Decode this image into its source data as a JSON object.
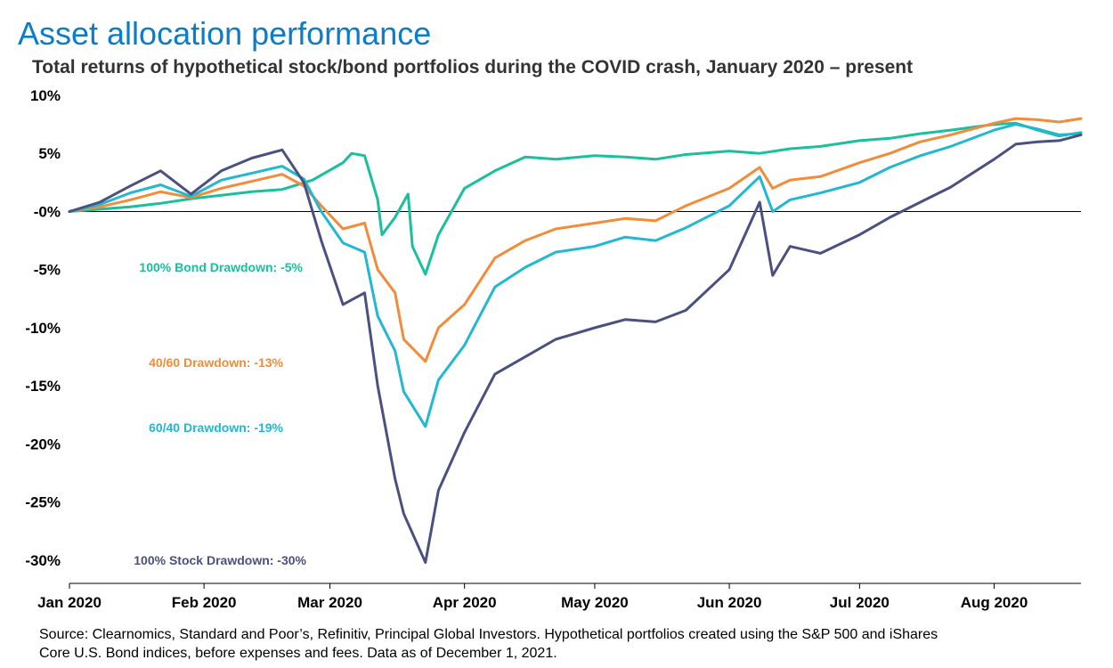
{
  "header": {
    "title": "Asset allocation performance",
    "subtitle": "Total returns of hypothetical stock/bond portfolios during the COVID crash, January 2020 – present"
  },
  "footer": {
    "source_line1": "Source: Clearnomics, Standard and Poor’s, Refinitiv, Principal Global Investors. Hypothetical portfolios created using the S&P 500 and iShares",
    "source_line2": "Core U.S. Bond indices, before expenses and fees. Data as of December 1, 2021."
  },
  "chart_data": {
    "type": "line",
    "title": "Asset allocation performance",
    "xlabel": "",
    "ylabel": "",
    "xlim": [
      "2020-01-01",
      "2020-08-21"
    ],
    "ylim": [
      -32,
      10
    ],
    "yticks": [
      10,
      5,
      0,
      -5,
      -10,
      -15,
      -20,
      -25,
      -30
    ],
    "ytick_labels": [
      "10%",
      "5%",
      "-0%",
      "-5%",
      "-10%",
      "-15%",
      "-20%",
      "-25%",
      "-30%"
    ],
    "xticks": [
      "2020-01-01",
      "2020-02-01",
      "2020-03-01",
      "2020-04-01",
      "2020-05-01",
      "2020-06-01",
      "2020-07-01",
      "2020-08-01"
    ],
    "xtick_labels": [
      "Jan 2020",
      "Feb 2020",
      "Mar 2020",
      "Apr 2020",
      "May 2020",
      "Jun 2020",
      "Jul 2020",
      "Aug 2020"
    ],
    "grid": false,
    "zero_line": true,
    "legend": "none",
    "annotations": [
      {
        "text": "100% Bond Drawdown: -5%",
        "color": "#1abf9b",
        "series": "100% Bond"
      },
      {
        "text": "40/60 Drawdown: -13%",
        "color": "#f28c38",
        "series": "40/60"
      },
      {
        "text": "60/40 Drawdown: -19%",
        "color": "#22b8d1",
        "series": "60/40"
      },
      {
        "text": "100% Stock Drawdown: -30%",
        "color": "#4a5080",
        "series": "100% Stock"
      }
    ],
    "series": [
      {
        "label": "100% Bond",
        "color": "#1abf9b",
        "points": [
          [
            "2020-01-01",
            0.0
          ],
          [
            "2020-01-08",
            0.2
          ],
          [
            "2020-01-15",
            0.4
          ],
          [
            "2020-01-22",
            0.7
          ],
          [
            "2020-01-29",
            1.1
          ],
          [
            "2020-02-05",
            1.4
          ],
          [
            "2020-02-12",
            1.7
          ],
          [
            "2020-02-19",
            1.9
          ],
          [
            "2020-02-26",
            2.7
          ],
          [
            "2020-03-04",
            4.2
          ],
          [
            "2020-03-06",
            5.0
          ],
          [
            "2020-03-09",
            4.8
          ],
          [
            "2020-03-12",
            1.0
          ],
          [
            "2020-03-13",
            -2.0
          ],
          [
            "2020-03-16",
            -0.5
          ],
          [
            "2020-03-19",
            1.5
          ],
          [
            "2020-03-20",
            -3.0
          ],
          [
            "2020-03-23",
            -5.4
          ],
          [
            "2020-03-26",
            -2.0
          ],
          [
            "2020-04-01",
            2.0
          ],
          [
            "2020-04-08",
            3.5
          ],
          [
            "2020-04-15",
            4.7
          ],
          [
            "2020-04-22",
            4.5
          ],
          [
            "2020-05-01",
            4.8
          ],
          [
            "2020-05-08",
            4.7
          ],
          [
            "2020-05-15",
            4.5
          ],
          [
            "2020-05-22",
            4.9
          ],
          [
            "2020-06-01",
            5.2
          ],
          [
            "2020-06-08",
            5.0
          ],
          [
            "2020-06-15",
            5.4
          ],
          [
            "2020-06-22",
            5.6
          ],
          [
            "2020-07-01",
            6.1
          ],
          [
            "2020-07-08",
            6.3
          ],
          [
            "2020-07-15",
            6.7
          ],
          [
            "2020-07-22",
            7.0
          ],
          [
            "2020-08-01",
            7.5
          ],
          [
            "2020-08-06",
            7.6
          ],
          [
            "2020-08-11",
            7.0
          ],
          [
            "2020-08-16",
            6.5
          ],
          [
            "2020-08-21",
            6.8
          ]
        ]
      },
      {
        "label": "40/60",
        "color": "#f28c38",
        "points": [
          [
            "2020-01-01",
            0.0
          ],
          [
            "2020-01-08",
            0.4
          ],
          [
            "2020-01-15",
            1.0
          ],
          [
            "2020-01-22",
            1.7
          ],
          [
            "2020-01-29",
            1.2
          ],
          [
            "2020-02-05",
            2.0
          ],
          [
            "2020-02-12",
            2.6
          ],
          [
            "2020-02-19",
            3.2
          ],
          [
            "2020-02-24",
            2.2
          ],
          [
            "2020-02-28",
            0.5
          ],
          [
            "2020-03-04",
            -1.5
          ],
          [
            "2020-03-09",
            -1.0
          ],
          [
            "2020-03-12",
            -5.0
          ],
          [
            "2020-03-16",
            -7.0
          ],
          [
            "2020-03-18",
            -11.0
          ],
          [
            "2020-03-23",
            -12.9
          ],
          [
            "2020-03-26",
            -10.0
          ],
          [
            "2020-04-01",
            -8.0
          ],
          [
            "2020-04-08",
            -4.0
          ],
          [
            "2020-04-15",
            -2.5
          ],
          [
            "2020-04-22",
            -1.5
          ],
          [
            "2020-05-01",
            -1.0
          ],
          [
            "2020-05-08",
            -0.6
          ],
          [
            "2020-05-15",
            -0.8
          ],
          [
            "2020-05-22",
            0.5
          ],
          [
            "2020-06-01",
            2.0
          ],
          [
            "2020-06-08",
            3.8
          ],
          [
            "2020-06-11",
            2.0
          ],
          [
            "2020-06-15",
            2.7
          ],
          [
            "2020-06-22",
            3.0
          ],
          [
            "2020-07-01",
            4.2
          ],
          [
            "2020-07-08",
            5.0
          ],
          [
            "2020-07-15",
            6.0
          ],
          [
            "2020-07-22",
            6.6
          ],
          [
            "2020-08-01",
            7.6
          ],
          [
            "2020-08-06",
            8.0
          ],
          [
            "2020-08-11",
            7.9
          ],
          [
            "2020-08-16",
            7.7
          ],
          [
            "2020-08-21",
            8.0
          ]
        ]
      },
      {
        "label": "60/40",
        "color": "#22b8d1",
        "points": [
          [
            "2020-01-01",
            0.0
          ],
          [
            "2020-01-08",
            0.6
          ],
          [
            "2020-01-15",
            1.6
          ],
          [
            "2020-01-22",
            2.3
          ],
          [
            "2020-01-29",
            1.3
          ],
          [
            "2020-02-05",
            2.7
          ],
          [
            "2020-02-12",
            3.3
          ],
          [
            "2020-02-19",
            3.9
          ],
          [
            "2020-02-24",
            2.8
          ],
          [
            "2020-02-28",
            0.0
          ],
          [
            "2020-03-04",
            -2.7
          ],
          [
            "2020-03-09",
            -3.5
          ],
          [
            "2020-03-12",
            -9.0
          ],
          [
            "2020-03-16",
            -12.0
          ],
          [
            "2020-03-18",
            -15.5
          ],
          [
            "2020-03-23",
            -18.5
          ],
          [
            "2020-03-26",
            -14.5
          ],
          [
            "2020-04-01",
            -11.5
          ],
          [
            "2020-04-08",
            -6.5
          ],
          [
            "2020-04-15",
            -4.8
          ],
          [
            "2020-04-22",
            -3.5
          ],
          [
            "2020-05-01",
            -3.0
          ],
          [
            "2020-05-08",
            -2.2
          ],
          [
            "2020-05-15",
            -2.5
          ],
          [
            "2020-05-22",
            -1.4
          ],
          [
            "2020-06-01",
            0.5
          ],
          [
            "2020-06-08",
            3.0
          ],
          [
            "2020-06-11",
            0.0
          ],
          [
            "2020-06-15",
            1.0
          ],
          [
            "2020-06-22",
            1.6
          ],
          [
            "2020-07-01",
            2.5
          ],
          [
            "2020-07-08",
            3.8
          ],
          [
            "2020-07-15",
            4.8
          ],
          [
            "2020-07-22",
            5.6
          ],
          [
            "2020-08-01",
            7.0
          ],
          [
            "2020-08-06",
            7.5
          ],
          [
            "2020-08-11",
            7.1
          ],
          [
            "2020-08-16",
            6.6
          ],
          [
            "2020-08-21",
            6.7
          ]
        ]
      },
      {
        "label": "100% Stock",
        "color": "#4a5080",
        "points": [
          [
            "2020-01-01",
            0.0
          ],
          [
            "2020-01-08",
            0.8
          ],
          [
            "2020-01-15",
            2.2
          ],
          [
            "2020-01-22",
            3.5
          ],
          [
            "2020-01-29",
            1.5
          ],
          [
            "2020-02-05",
            3.5
          ],
          [
            "2020-02-12",
            4.6
          ],
          [
            "2020-02-19",
            5.3
          ],
          [
            "2020-02-24",
            2.5
          ],
          [
            "2020-02-28",
            -2.5
          ],
          [
            "2020-03-04",
            -8.0
          ],
          [
            "2020-03-09",
            -7.0
          ],
          [
            "2020-03-12",
            -15.0
          ],
          [
            "2020-03-16",
            -23.0
          ],
          [
            "2020-03-18",
            -26.0
          ],
          [
            "2020-03-23",
            -30.2
          ],
          [
            "2020-03-26",
            -24.0
          ],
          [
            "2020-04-01",
            -19.0
          ],
          [
            "2020-04-08",
            -14.0
          ],
          [
            "2020-04-15",
            -12.5
          ],
          [
            "2020-04-22",
            -11.0
          ],
          [
            "2020-05-01",
            -10.0
          ],
          [
            "2020-05-08",
            -9.3
          ],
          [
            "2020-05-15",
            -9.5
          ],
          [
            "2020-05-22",
            -8.5
          ],
          [
            "2020-06-01",
            -5.0
          ],
          [
            "2020-06-08",
            0.8
          ],
          [
            "2020-06-11",
            -5.5
          ],
          [
            "2020-06-15",
            -3.0
          ],
          [
            "2020-06-22",
            -3.6
          ],
          [
            "2020-07-01",
            -2.0
          ],
          [
            "2020-07-08",
            -0.5
          ],
          [
            "2020-07-15",
            0.8
          ],
          [
            "2020-07-22",
            2.1
          ],
          [
            "2020-08-01",
            4.5
          ],
          [
            "2020-08-06",
            5.8
          ],
          [
            "2020-08-11",
            6.0
          ],
          [
            "2020-08-16",
            6.1
          ],
          [
            "2020-08-21",
            6.6
          ]
        ]
      }
    ]
  }
}
